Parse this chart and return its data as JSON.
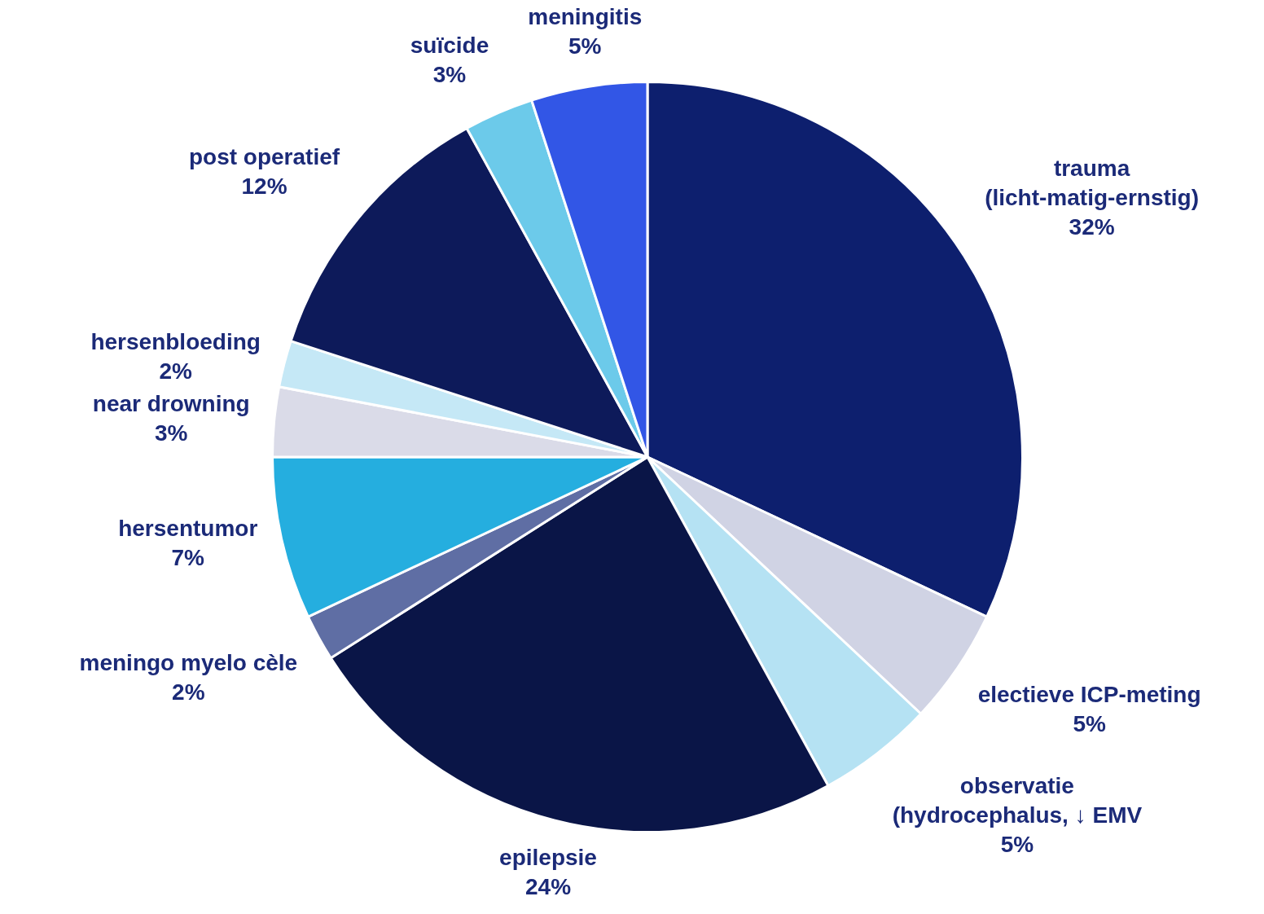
{
  "chart_data": {
    "type": "pie",
    "categories": [
      "trauma (licht-matig-ernstig)",
      "electieve ICP-meting",
      "observatie (hydrocephalus, ↓ EMV",
      "epilepsie",
      "meningo myelo cèle",
      "hersentumor",
      "near drowning",
      "hersenbloeding",
      "post operatief",
      "suïcide",
      "meningitis"
    ],
    "values": [
      32,
      5,
      5,
      24,
      2,
      7,
      3,
      2,
      12,
      3,
      5
    ],
    "value_labels": [
      "32%",
      "5%",
      "5%",
      "24%",
      "2%",
      "7%",
      "3%",
      "2%",
      "12%",
      "3%",
      "5%"
    ],
    "colors": [
      "#0d1f6e",
      "#d0d3e4",
      "#b5e2f3",
      "#0a1547",
      "#5f6ea4",
      "#25aedf",
      "#dadbe8",
      "#c5e8f6",
      "#0d1a5a",
      "#6ccaea",
      "#3256e6"
    ],
    "legend": false
  }
}
